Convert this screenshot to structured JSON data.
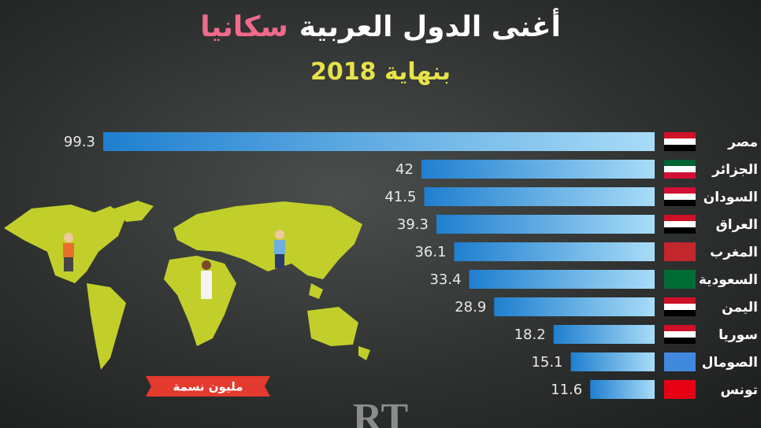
{
  "chart_data": {
    "type": "bar",
    "orientation": "horizontal",
    "title": "أغنى الدول العربية",
    "title_highlight": "سكانيا",
    "subtitle": "بنهاية 2018",
    "unit_label": "مليون نسمة",
    "logo": "RT",
    "categories": [
      "مصر",
      "الجزائر",
      "السودان",
      "العراق",
      "المغرب",
      "السعودية",
      "اليمن",
      "سوريا",
      "الصومال",
      "تونس"
    ],
    "values": [
      99.3,
      42,
      41.5,
      39.3,
      36.1,
      33.4,
      28.9,
      18.2,
      15.1,
      11.6
    ],
    "color": "#3a9ee0"
  }
}
